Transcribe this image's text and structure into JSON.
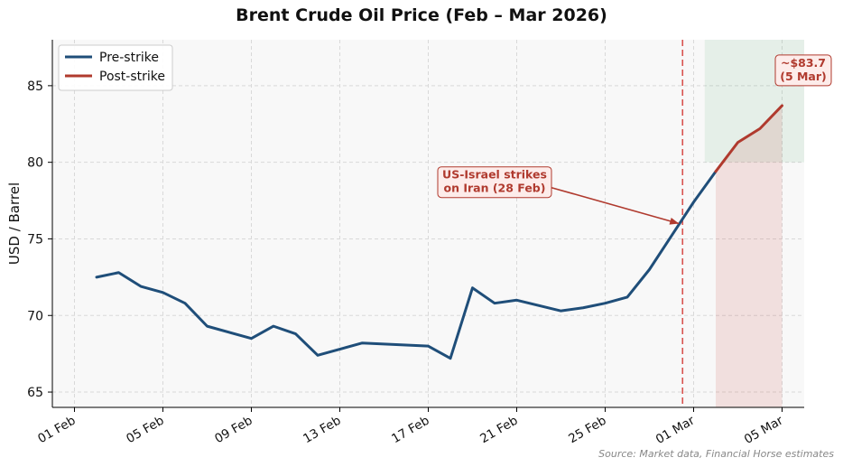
{
  "chart_data": {
    "type": "line",
    "title": "Brent Crude Oil Price (Feb – Mar 2026)",
    "xlabel": "",
    "ylabel": "USD / Barrel",
    "ylim": [
      64,
      88
    ],
    "xlim": [
      "2026-01-31",
      "2026-03-06"
    ],
    "yticks": [
      65,
      70,
      75,
      80,
      85
    ],
    "xticks": [
      {
        "date": "2026-02-01",
        "label": "01 Feb"
      },
      {
        "date": "2026-02-05",
        "label": "05 Feb"
      },
      {
        "date": "2026-02-09",
        "label": "09 Feb"
      },
      {
        "date": "2026-02-13",
        "label": "13 Feb"
      },
      {
        "date": "2026-02-17",
        "label": "17 Feb"
      },
      {
        "date": "2026-02-21",
        "label": "21 Feb"
      },
      {
        "date": "2026-02-25",
        "label": "25 Feb"
      },
      {
        "date": "2026-03-01",
        "label": "01 Mar"
      },
      {
        "date": "2026-03-05",
        "label": "05 Mar"
      }
    ],
    "grid": true,
    "legend_position": "top-left",
    "series": [
      {
        "name": "Pre-strike",
        "color": "#1f4e79",
        "points": [
          {
            "x": "2026-02-02",
            "y": 72.5
          },
          {
            "x": "2026-02-03",
            "y": 72.8
          },
          {
            "x": "2026-02-04",
            "y": 71.9
          },
          {
            "x": "2026-02-05",
            "y": 71.5
          },
          {
            "x": "2026-02-06",
            "y": 70.8
          },
          {
            "x": "2026-02-07",
            "y": 69.3
          },
          {
            "x": "2026-02-09",
            "y": 68.5
          },
          {
            "x": "2026-02-10",
            "y": 69.3
          },
          {
            "x": "2026-02-11",
            "y": 68.8
          },
          {
            "x": "2026-02-12",
            "y": 67.4
          },
          {
            "x": "2026-02-14",
            "y": 68.2
          },
          {
            "x": "2026-02-17",
            "y": 68.0
          },
          {
            "x": "2026-02-18",
            "y": 67.2
          },
          {
            "x": "2026-02-19",
            "y": 71.8
          },
          {
            "x": "2026-02-20",
            "y": 70.8
          },
          {
            "x": "2026-02-21",
            "y": 71.0
          },
          {
            "x": "2026-02-23",
            "y": 70.3
          },
          {
            "x": "2026-02-24",
            "y": 70.5
          },
          {
            "x": "2026-02-25",
            "y": 70.8
          },
          {
            "x": "2026-02-26",
            "y": 71.2
          },
          {
            "x": "2026-02-27",
            "y": 73.0
          },
          {
            "x": "2026-02-28",
            "y": 75.2
          },
          {
            "x": "2026-03-01",
            "y": 77.4
          },
          {
            "x": "2026-03-02",
            "y": 79.4
          }
        ]
      },
      {
        "name": "Post-strike",
        "color": "#b03a2e",
        "points": [
          {
            "x": "2026-03-02",
            "y": 79.4
          },
          {
            "x": "2026-03-03",
            "y": 81.3
          },
          {
            "x": "2026-03-04",
            "y": 82.2
          },
          {
            "x": "2026-03-05",
            "y": 83.7
          }
        ]
      }
    ],
    "event_line": {
      "x": "2026-02-28T12:00",
      "color": "#d9534f"
    },
    "green_band": {
      "x_start": "2026-03-01T12:00",
      "x_end": "2026-03-06",
      "y_start": 80,
      "y_end": 88
    },
    "red_fill": {
      "x_start": "2026-03-02",
      "x_end": "2026-03-05",
      "y_base": 64
    },
    "annotations": [
      {
        "text": "US-Israel strikes\non Iran (28 Feb)",
        "text_x": "2026-02-20",
        "text_y": 78.7,
        "arrow_x": "2026-02-28T12:00",
        "arrow_y": 76.0,
        "color": "#b03a2e"
      },
      {
        "text": "~$83.7\n(5 Mar)",
        "text_x": "2026-03-06",
        "text_y": 86.0,
        "color": "#b03a2e"
      }
    ],
    "source": "Source: Market data, Financial Horse estimates"
  }
}
